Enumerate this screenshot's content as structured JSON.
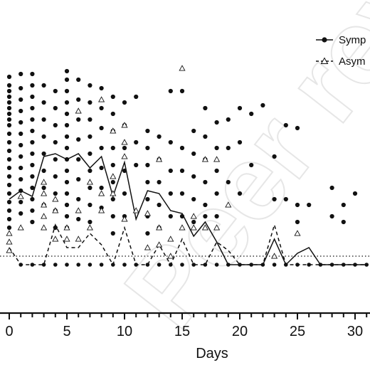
{
  "chart_data": {
    "type": "scatter",
    "xlabel": "Days",
    "ylabel": "",
    "xlim": [
      -0.8,
      31.5
    ],
    "ylim": [
      0,
      100
    ],
    "xticks": [
      0,
      5,
      10,
      15,
      20,
      25,
      30
    ],
    "grid": false,
    "legend_position": "top-right",
    "threshold_line": 20,
    "watermark": "Peer revi",
    "series": [
      {
        "name": "Symp",
        "marker": "circle",
        "line": "solid",
        "color": "#111111",
        "points": [
          [
            0,
            83
          ],
          [
            0,
            80
          ],
          [
            0,
            78
          ],
          [
            0,
            76
          ],
          [
            0,
            74
          ],
          [
            0,
            72
          ],
          [
            0,
            70
          ],
          [
            0,
            68
          ],
          [
            0,
            66
          ],
          [
            0,
            63
          ],
          [
            0,
            60
          ],
          [
            0,
            57
          ],
          [
            0,
            54
          ],
          [
            0,
            51
          ],
          [
            0,
            48
          ],
          [
            0,
            45
          ],
          [
            0,
            42
          ],
          [
            0,
            39
          ],
          [
            0,
            36
          ],
          [
            0,
            33
          ],
          [
            0,
            30
          ],
          [
            1,
            84
          ],
          [
            1,
            79
          ],
          [
            1,
            75
          ],
          [
            1,
            71
          ],
          [
            1,
            67
          ],
          [
            1,
            63
          ],
          [
            1,
            59
          ],
          [
            1,
            55
          ],
          [
            1,
            51
          ],
          [
            1,
            47
          ],
          [
            1,
            43
          ],
          [
            1,
            39
          ],
          [
            1,
            35
          ],
          [
            2,
            84
          ],
          [
            2,
            80
          ],
          [
            2,
            76
          ],
          [
            2,
            72
          ],
          [
            2,
            68
          ],
          [
            2,
            64
          ],
          [
            2,
            60
          ],
          [
            2,
            56
          ],
          [
            2,
            52
          ],
          [
            2,
            48
          ],
          [
            2,
            44
          ],
          [
            2,
            40
          ],
          [
            2,
            36
          ],
          [
            2,
            32
          ],
          [
            3,
            80
          ],
          [
            3,
            74
          ],
          [
            3,
            68
          ],
          [
            3,
            62
          ],
          [
            3,
            56
          ],
          [
            3,
            50
          ],
          [
            3,
            44
          ],
          [
            3,
            38
          ],
          [
            4,
            78
          ],
          [
            4,
            72
          ],
          [
            4,
            66
          ],
          [
            4,
            60
          ],
          [
            4,
            54
          ],
          [
            4,
            48
          ],
          [
            4,
            42
          ],
          [
            4,
            36
          ],
          [
            4,
            30
          ],
          [
            5,
            85
          ],
          [
            5,
            82
          ],
          [
            5,
            78
          ],
          [
            5,
            74
          ],
          [
            5,
            70
          ],
          [
            5,
            66
          ],
          [
            5,
            62
          ],
          [
            5,
            58
          ],
          [
            5,
            54
          ],
          [
            5,
            50
          ],
          [
            5,
            46
          ],
          [
            5,
            42
          ],
          [
            5,
            38
          ],
          [
            5,
            34
          ],
          [
            5,
            30
          ],
          [
            6,
            82
          ],
          [
            6,
            75
          ],
          [
            6,
            68
          ],
          [
            6,
            61
          ],
          [
            6,
            54
          ],
          [
            6,
            47
          ],
          [
            6,
            40
          ],
          [
            6,
            33
          ],
          [
            7,
            80
          ],
          [
            7,
            74
          ],
          [
            7,
            68
          ],
          [
            7,
            62
          ],
          [
            7,
            56
          ],
          [
            7,
            50
          ],
          [
            7,
            44
          ],
          [
            7,
            38
          ],
          [
            7,
            32
          ],
          [
            8,
            79
          ],
          [
            8,
            72
          ],
          [
            8,
            65
          ],
          [
            8,
            58
          ],
          [
            8,
            51
          ],
          [
            8,
            44
          ],
          [
            8,
            37
          ],
          [
            9,
            76
          ],
          [
            9,
            70
          ],
          [
            9,
            64
          ],
          [
            9,
            58
          ],
          [
            9,
            52
          ],
          [
            9,
            46
          ],
          [
            9,
            40
          ],
          [
            9,
            34
          ],
          [
            9,
            28
          ],
          [
            10,
            74
          ],
          [
            10,
            66
          ],
          [
            10,
            58
          ],
          [
            10,
            50
          ],
          [
            10,
            42
          ],
          [
            10,
            34
          ],
          [
            11,
            76
          ],
          [
            11,
            60
          ],
          [
            11,
            52
          ],
          [
            12,
            64
          ],
          [
            12,
            58
          ],
          [
            12,
            52
          ],
          [
            12,
            46
          ],
          [
            12,
            40
          ],
          [
            12,
            34
          ],
          [
            12,
            28
          ],
          [
            13,
            62
          ],
          [
            13,
            54
          ],
          [
            13,
            46
          ],
          [
            13,
            38
          ],
          [
            13,
            30
          ],
          [
            14,
            78
          ],
          [
            14,
            60
          ],
          [
            14,
            50
          ],
          [
            14,
            42
          ],
          [
            14,
            34
          ],
          [
            15,
            78
          ],
          [
            15,
            58
          ],
          [
            15,
            50
          ],
          [
            15,
            42
          ],
          [
            15,
            34
          ],
          [
            16,
            64
          ],
          [
            16,
            56
          ],
          [
            16,
            48
          ],
          [
            16,
            40
          ],
          [
            16,
            32
          ],
          [
            17,
            72
          ],
          [
            17,
            62
          ],
          [
            17,
            54
          ],
          [
            17,
            46
          ],
          [
            17,
            38
          ],
          [
            17,
            34
          ],
          [
            18,
            67
          ],
          [
            18,
            58
          ],
          [
            18,
            50
          ],
          [
            18,
            42
          ],
          [
            18,
            34
          ],
          [
            19,
            68
          ],
          [
            19,
            58
          ],
          [
            19,
            46
          ],
          [
            20,
            72
          ],
          [
            20,
            60
          ],
          [
            20,
            42
          ],
          [
            21,
            70
          ],
          [
            21,
            52
          ],
          [
            22,
            73
          ],
          [
            23,
            55
          ],
          [
            23,
            40
          ],
          [
            24,
            66
          ],
          [
            24,
            40
          ],
          [
            25,
            65
          ],
          [
            25,
            38
          ],
          [
            25,
            32
          ],
          [
            26,
            38
          ],
          [
            28,
            44
          ],
          [
            28,
            34
          ],
          [
            29,
            38
          ],
          [
            29,
            32
          ],
          [
            30,
            42
          ]
        ],
        "trend": [
          [
            0,
            40
          ],
          [
            1,
            43
          ],
          [
            2,
            41
          ],
          [
            3,
            55
          ],
          [
            4,
            56
          ],
          [
            5,
            54
          ],
          [
            6,
            56
          ],
          [
            7,
            51
          ],
          [
            8,
            55
          ],
          [
            9,
            41
          ],
          [
            10,
            53
          ],
          [
            11,
            33
          ],
          [
            12,
            43
          ],
          [
            13,
            42
          ],
          [
            14,
            36
          ],
          [
            15,
            35
          ],
          [
            16,
            27
          ],
          [
            17,
            32
          ],
          [
            18,
            25
          ],
          [
            19,
            17
          ],
          [
            20,
            17
          ],
          [
            21,
            17
          ],
          [
            22,
            17
          ],
          [
            23,
            26
          ],
          [
            24,
            17
          ],
          [
            25,
            21
          ],
          [
            26,
            23
          ],
          [
            27,
            17
          ],
          [
            28,
            17
          ],
          [
            29,
            17
          ],
          [
            30,
            17
          ],
          [
            31,
            17
          ]
        ]
      },
      {
        "name": "Asym",
        "marker": "triangle-open",
        "line": "dashed",
        "color": "#111111",
        "points": [
          [
            0,
            22
          ],
          [
            0,
            25
          ],
          [
            0,
            28
          ],
          [
            1,
            30
          ],
          [
            1,
            41
          ],
          [
            3,
            46
          ],
          [
            3,
            42
          ],
          [
            3,
            38
          ],
          [
            3,
            34
          ],
          [
            3,
            30
          ],
          [
            4,
            40
          ],
          [
            4,
            36
          ],
          [
            4,
            26
          ],
          [
            5,
            30
          ],
          [
            5,
            26
          ],
          [
            6,
            26
          ],
          [
            6,
            36
          ],
          [
            6,
            71
          ],
          [
            7,
            46
          ],
          [
            7,
            30
          ],
          [
            8,
            75
          ],
          [
            8,
            42
          ],
          [
            8,
            36
          ],
          [
            9,
            64
          ],
          [
            9,
            48
          ],
          [
            9,
            42
          ],
          [
            10,
            66
          ],
          [
            10,
            60
          ],
          [
            10,
            55
          ],
          [
            10,
            33
          ],
          [
            11,
            36
          ],
          [
            12,
            23
          ],
          [
            12,
            35
          ],
          [
            13,
            24
          ],
          [
            13,
            30
          ],
          [
            13,
            54
          ],
          [
            14,
            20
          ],
          [
            14,
            26
          ],
          [
            15,
            86
          ],
          [
            15,
            30
          ],
          [
            16,
            30
          ],
          [
            16,
            34
          ],
          [
            17,
            54
          ],
          [
            17,
            30
          ],
          [
            18,
            54
          ],
          [
            18,
            30
          ],
          [
            19,
            38
          ],
          [
            23,
            20
          ],
          [
            25,
            28
          ]
        ],
        "trend": [
          [
            0,
            23
          ],
          [
            1,
            17
          ],
          [
            2,
            17
          ],
          [
            3,
            17
          ],
          [
            4,
            31
          ],
          [
            5,
            23
          ],
          [
            6,
            23
          ],
          [
            7,
            28
          ],
          [
            8,
            24
          ],
          [
            9,
            17
          ],
          [
            10,
            30
          ],
          [
            11,
            17
          ],
          [
            12,
            17
          ],
          [
            13,
            24
          ],
          [
            14,
            17
          ],
          [
            15,
            26
          ],
          [
            16,
            17
          ],
          [
            17,
            17
          ],
          [
            18,
            25
          ],
          [
            19,
            22
          ],
          [
            20,
            17
          ],
          [
            21,
            17
          ],
          [
            22,
            17
          ],
          [
            23,
            31
          ],
          [
            24,
            17
          ],
          [
            25,
            17
          ],
          [
            26,
            17
          ],
          [
            27,
            17
          ],
          [
            28,
            17
          ],
          [
            29,
            17
          ],
          [
            30,
            17
          ],
          [
            31,
            17
          ]
        ]
      }
    ],
    "baseline_points": {
      "y": 17,
      "x": [
        1,
        2,
        3,
        4,
        5,
        6,
        7,
        8,
        9,
        10,
        11,
        12,
        13,
        14,
        15,
        16,
        17,
        18,
        19,
        20,
        21,
        22,
        23,
        24,
        25,
        26,
        27,
        28,
        29,
        30,
        31
      ]
    }
  }
}
